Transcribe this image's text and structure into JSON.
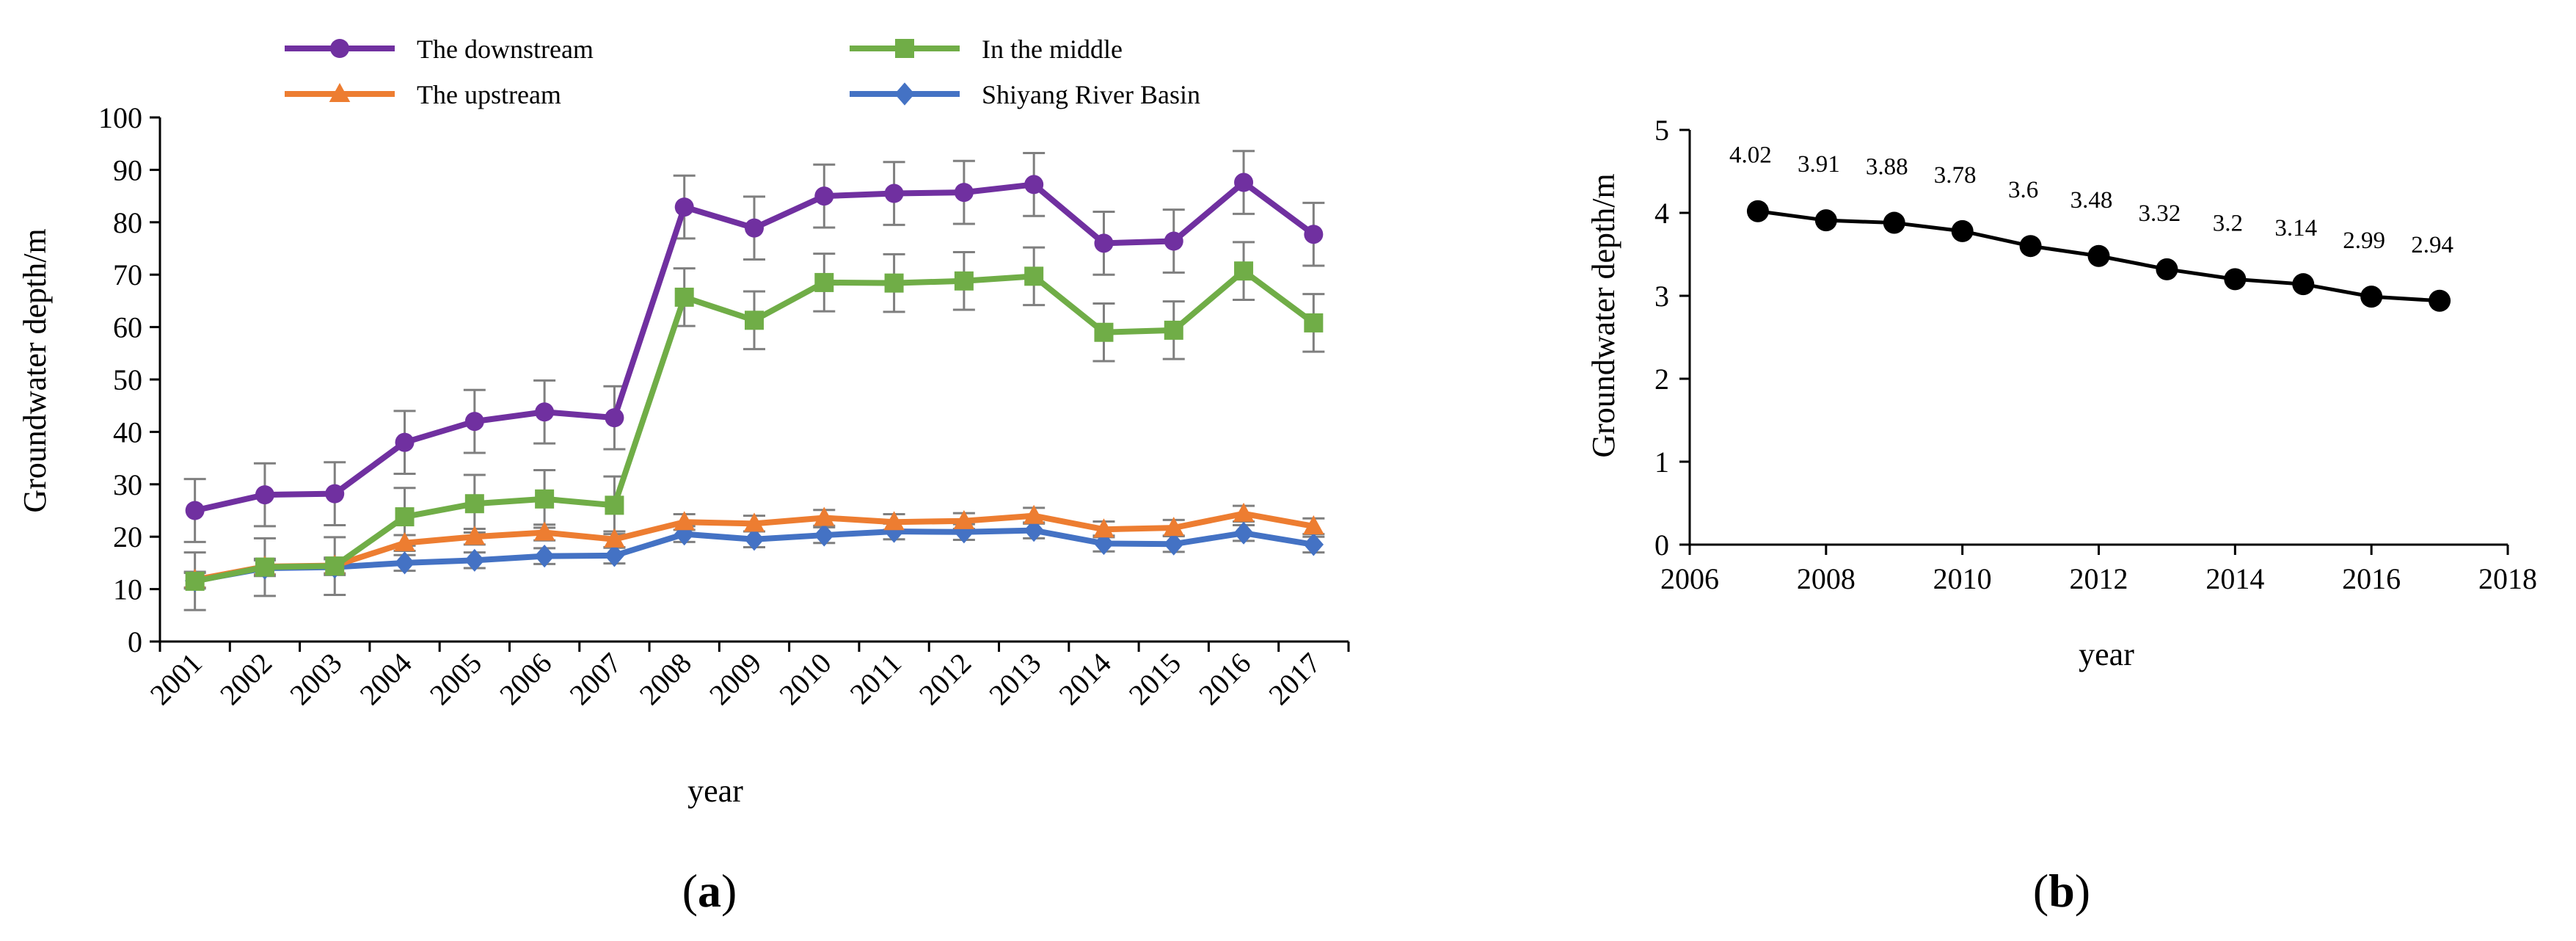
{
  "colors": {
    "downstream": "#7030A0",
    "middle": "#70AD47",
    "upstream": "#ED7D31",
    "basin": "#4472C4",
    "errorbar": "#7F7F7F",
    "trend": "#000000"
  },
  "panels": {
    "a": {
      "label_open": "(",
      "label_letter": "a",
      "label_close": ")"
    },
    "b": {
      "label_open": "(",
      "label_letter": "b",
      "label_close": ")"
    }
  },
  "chart_data": [
    {
      "id": "a",
      "type": "line",
      "title": "",
      "xlabel": "year",
      "ylabel": "Groundwater depth/m",
      "ylim": [
        0,
        100
      ],
      "yticks": [
        0,
        10,
        20,
        30,
        40,
        50,
        60,
        70,
        80,
        90,
        100
      ],
      "grid": false,
      "legend_position": "top",
      "categories": [
        "2001",
        "2002",
        "2003",
        "2004",
        "2005",
        "2006",
        "2007",
        "2008",
        "2009",
        "2010",
        "2011",
        "2012",
        "2013",
        "2014",
        "2015",
        "2016",
        "2017"
      ],
      "series": [
        {
          "key": "downstream",
          "name": "The downstream",
          "marker": "circle",
          "values": [
            25.0,
            28.0,
            28.2,
            38.0,
            42.0,
            43.8,
            42.7,
            82.9,
            78.9,
            85.0,
            85.5,
            85.7,
            87.2,
            76.0,
            76.4,
            87.6,
            77.7
          ],
          "errors": [
            6,
            6,
            6,
            6,
            6,
            6,
            6,
            6,
            6,
            6,
            6,
            6,
            6,
            6,
            6,
            6,
            6
          ]
        },
        {
          "key": "middle",
          "name": "In the middle",
          "marker": "square",
          "values": [
            11.5,
            14.2,
            14.4,
            23.8,
            26.3,
            27.2,
            26.0,
            65.7,
            61.3,
            68.5,
            68.4,
            68.8,
            69.7,
            59.0,
            59.4,
            70.7,
            60.8
          ],
          "errors": [
            5.5,
            5.5,
            5.5,
            5.5,
            5.5,
            5.5,
            5.5,
            5.5,
            5.5,
            5.5,
            5.5,
            5.5,
            5.5,
            5.5,
            5.5,
            5.5,
            5.5
          ]
        },
        {
          "key": "upstream",
          "name": "The upstream",
          "marker": "triangle",
          "values": [
            11.8,
            14.3,
            14.5,
            18.8,
            20.0,
            20.8,
            19.5,
            22.8,
            22.5,
            23.6,
            22.8,
            23.0,
            24.0,
            21.4,
            21.7,
            24.4,
            22.0
          ],
          "errors": [
            1.5,
            1.5,
            1.5,
            1.5,
            1.5,
            1.5,
            1.5,
            1.5,
            1.5,
            1.5,
            1.5,
            1.5,
            1.5,
            1.5,
            1.5,
            1.5,
            1.5
          ]
        },
        {
          "key": "basin",
          "name": "Shiyang River Basin",
          "marker": "diamond",
          "values": [
            11.6,
            14.0,
            14.2,
            15.0,
            15.5,
            16.3,
            16.4,
            20.5,
            19.5,
            20.3,
            21.0,
            20.9,
            21.2,
            18.7,
            18.6,
            20.7,
            18.5
          ],
          "errors": [
            1.5,
            1.5,
            1.5,
            1.5,
            1.5,
            1.5,
            1.5,
            1.5,
            1.5,
            1.5,
            1.5,
            1.5,
            1.5,
            1.5,
            1.5,
            1.5,
            1.5
          ]
        }
      ]
    },
    {
      "id": "b",
      "type": "line",
      "title": "",
      "xlabel": "year",
      "ylabel": "Groundwater depth/m",
      "xlim": [
        2006,
        2018
      ],
      "xticks": [
        2006,
        2008,
        2010,
        2012,
        2014,
        2016,
        2018
      ],
      "ylim": [
        0,
        5
      ],
      "yticks": [
        0,
        1,
        2,
        3,
        4,
        5
      ],
      "grid": false,
      "x": [
        2007,
        2008,
        2009,
        2010,
        2011,
        2012,
        2013,
        2014,
        2015,
        2016,
        2017
      ],
      "values": [
        4.02,
        3.91,
        3.88,
        3.78,
        3.6,
        3.48,
        3.32,
        3.2,
        3.14,
        2.99,
        2.94
      ],
      "labels": [
        "4.02",
        "3.91",
        "3.88",
        "3.78",
        "3.6",
        "3.48",
        "3.32",
        "3.2",
        "3.14",
        "2.99",
        "2.94"
      ]
    }
  ]
}
